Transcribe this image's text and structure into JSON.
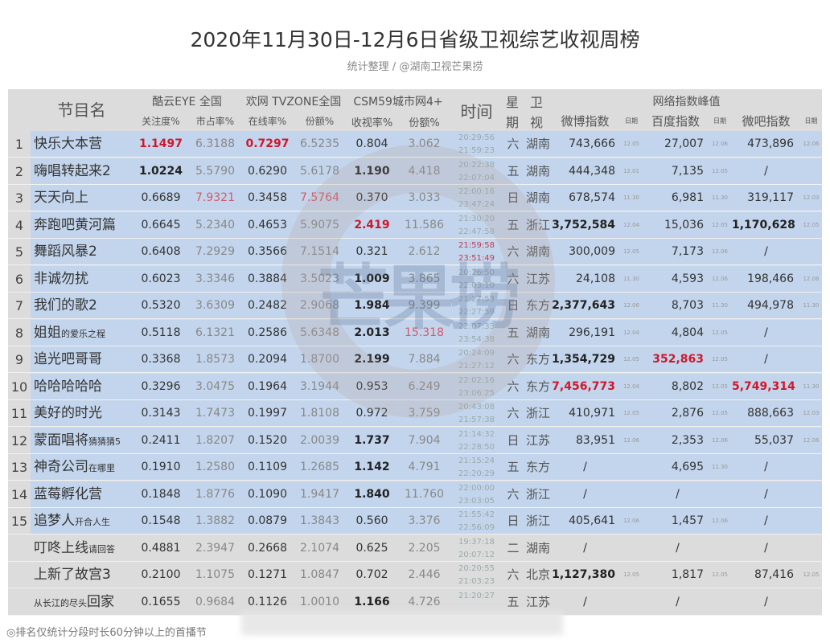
{
  "title": "2020年11月30日-12月6日省级卫视综艺收视周榜",
  "subtitle": "统计整理 / @湖南卫视芒果捞",
  "footer": "◎排名仅统计分段时长60分钟以上的首播节",
  "watermark": "芒果捞",
  "header": {
    "name": "节目名",
    "kuyun": "酷云EYE 全国",
    "huanwang": "欢网 TVZONE全国",
    "csm": "CSM59城市网4+",
    "time": "时间",
    "weekday_top": "星",
    "weekday_bottom": "期",
    "channel_top": "卫",
    "channel_bottom": "视",
    "network": "网络指数峰值",
    "attention": "关注度%",
    "market": "市占率%",
    "online": "在线率%",
    "share1": "份额%",
    "rating": "收视率%",
    "share2": "份额%",
    "weibo": "微博指数",
    "date1": "日期",
    "baidu": "百度指数",
    "date2": "日期",
    "weiba": "微吧指数",
    "date3": "日期"
  },
  "rows": [
    {
      "rank": "1",
      "name": "快乐大本营",
      "sub": "",
      "v": [
        "1.1497",
        "6.3188",
        "0.7297",
        "6.5235",
        "0.804",
        "3.062"
      ],
      "t1": "20:29:56",
      "t2": "21:59:23",
      "wk": "六",
      "ch": "湖南",
      "weibo": "743,666",
      "d1": "12.05",
      "baidu": "27,007",
      "d2": "12.06",
      "weiba": "473,896",
      "d3": "12.06",
      "blue": true,
      "bold": [],
      "red": [
        "v0",
        "v2"
      ]
    },
    {
      "rank": "2",
      "name": "嗨唱转起来2",
      "sub": "",
      "v": [
        "1.0224",
        "5.5790",
        "0.6290",
        "5.6178",
        "1.190",
        "4.418"
      ],
      "t1": "20:22:38",
      "t2": "22:07:04",
      "wk": "五",
      "ch": "湖南",
      "weibo": "444,348",
      "d1": "12.01",
      "baidu": "7,135",
      "d2": "12.05",
      "weiba": "/",
      "d3": "",
      "blue": true,
      "bold": [
        "v0",
        "v4"
      ],
      "red": []
    },
    {
      "rank": "3",
      "name": "天天向上",
      "sub": "",
      "v": [
        "0.6689",
        "7.9321",
        "0.3458",
        "7.5764",
        "0.370",
        "3.033"
      ],
      "t1": "22:00:16",
      "t2": "23:47:24",
      "wk": "日",
      "ch": "湖南",
      "weibo": "678,574",
      "d1": "11.30",
      "baidu": "6,981",
      "d2": "11.30",
      "weiba": "319,117",
      "d3": "12.03",
      "blue": true,
      "bold": [],
      "red": [],
      "redlight": [
        "v1",
        "v3"
      ]
    },
    {
      "rank": "4",
      "name": "奔跑吧黄河篇",
      "sub": "",
      "v": [
        "0.6645",
        "5.2340",
        "0.4653",
        "5.9075",
        "2.419",
        "11.586"
      ],
      "t1": "21:30:20",
      "t2": "22:47:58",
      "wk": "五",
      "ch": "浙江",
      "weibo": "3,752,584",
      "d1": "12.04",
      "baidu": "15,036",
      "d2": "12.05",
      "weiba": "1,170,628",
      "d3": "12.05",
      "blue": true,
      "bold": [
        "weibo",
        "weiba"
      ],
      "red": [
        "v4"
      ]
    },
    {
      "rank": "5",
      "name": "舞蹈风暴2",
      "sub": "",
      "v": [
        "0.6408",
        "7.2929",
        "0.3566",
        "7.1514",
        "0.321",
        "2.612"
      ],
      "t1": "21:59:58",
      "t2": "23:51:49",
      "wk": "六",
      "ch": "湖南",
      "weibo": "300,009",
      "d1": "12.05",
      "baidu": "7,173",
      "d2": "12.06",
      "weiba": "/",
      "d3": "",
      "blue": true,
      "bold": [],
      "red": [],
      "timered": true
    },
    {
      "rank": "6",
      "name": "非诚勿扰",
      "sub": "",
      "v": [
        "0.6023",
        "3.3346",
        "0.3884",
        "3.5023",
        "1.009",
        "3.865"
      ],
      "t1": "20:26:50",
      "t2": "22:03:10",
      "wk": "六",
      "ch": "江苏",
      "weibo": "24,108",
      "d1": "11.30",
      "baidu": "4,593",
      "d2": "12.06",
      "weiba": "198,466",
      "d3": "12.06",
      "blue": true,
      "bold": [
        "v4"
      ],
      "red": []
    },
    {
      "rank": "7",
      "name": "我们的歌2",
      "sub": "",
      "v": [
        "0.5320",
        "3.6309",
        "0.2482",
        "2.9068",
        "1.984",
        "9.399"
      ],
      "t1": "21:27:53",
      "t2": "22:27:59",
      "wk": "日",
      "ch": "东方",
      "weibo": "2,377,643",
      "d1": "12.06",
      "baidu": "8,703",
      "d2": "11.30",
      "weiba": "494,978",
      "d3": "11.30",
      "blue": true,
      "bold": [
        "v4",
        "weibo"
      ],
      "red": []
    },
    {
      "rank": "8",
      "name": "姐姐",
      "sub": "的爱乐之程",
      "v": [
        "0.5118",
        "6.1321",
        "0.2586",
        "5.6348",
        "2.013",
        "15.318"
      ],
      "t1": "22:07:33",
      "t2": "23:54:38",
      "wk": "五",
      "ch": "湖南",
      "weibo": "296,191",
      "d1": "12.04",
      "baidu": "4,804",
      "d2": "12.05",
      "weiba": "/",
      "d3": "",
      "blue": true,
      "bold": [
        "v4"
      ],
      "red": [],
      "redlight": [
        "v5"
      ]
    },
    {
      "rank": "9",
      "name": "追光吧哥哥",
      "sub": "",
      "v": [
        "0.3368",
        "1.8573",
        "0.2094",
        "1.8700",
        "2.199",
        "7.884"
      ],
      "t1": "20:24:09",
      "t2": "21:27:12",
      "wk": "六",
      "ch": "东方",
      "weibo": "1,354,729",
      "d1": "12.05",
      "baidu": "352,863",
      "d2": "12.05",
      "weiba": "/",
      "d3": "",
      "blue": true,
      "bold": [
        "v4",
        "weibo"
      ],
      "red": [
        "baidu"
      ]
    },
    {
      "rank": "10",
      "name": "哈哈哈哈哈",
      "sub": "",
      "v": [
        "0.3296",
        "3.0475",
        "0.1964",
        "3.1944",
        "0.953",
        "6.249"
      ],
      "t1": "22:02:16",
      "t2": "23:06:25",
      "wk": "六",
      "ch": "东方",
      "weibo": "7,456,773",
      "d1": "12.04",
      "baidu": "8,802",
      "d2": "12.05",
      "weiba": "5,749,314",
      "d3": "11.30",
      "blue": true,
      "bold": [],
      "red": [
        "weibo",
        "weiba"
      ]
    },
    {
      "rank": "11",
      "name": "美好的时光",
      "sub": "",
      "v": [
        "0.3143",
        "1.7473",
        "0.1997",
        "1.8108",
        "0.972",
        "3.759"
      ],
      "t1": "20:43:08",
      "t2": "21:57:38",
      "wk": "六",
      "ch": "浙江",
      "weibo": "410,971",
      "d1": "12.05",
      "baidu": "2,876",
      "d2": "12.05",
      "weiba": "888,663",
      "d3": "12.03",
      "blue": true,
      "bold": [],
      "red": []
    },
    {
      "rank": "12",
      "name": "蒙面唱将",
      "sub": "猜猜猜5",
      "v": [
        "0.2411",
        "1.8207",
        "0.1520",
        "2.0039",
        "1.737",
        "7.904"
      ],
      "t1": "21:14:32",
      "t2": "22:28:50",
      "wk": "日",
      "ch": "江苏",
      "weibo": "83,951",
      "d1": "12.06",
      "baidu": "2,353",
      "d2": "12.06",
      "weiba": "55,037",
      "d3": "12.06",
      "blue": true,
      "bold": [
        "v4"
      ],
      "red": []
    },
    {
      "rank": "13",
      "name": "神奇公司",
      "sub": "在哪里",
      "v": [
        "0.1910",
        "1.2580",
        "0.1109",
        "1.2685",
        "1.142",
        "4.791"
      ],
      "t1": "21:15:24",
      "t2": "22:20:29",
      "wk": "五",
      "ch": "东方",
      "weibo": "/",
      "d1": "",
      "baidu": "4,695",
      "d2": "11.30",
      "weiba": "/",
      "d3": "",
      "blue": true,
      "bold": [
        "v4"
      ],
      "red": []
    },
    {
      "rank": "14",
      "name": "蓝莓孵化营",
      "sub": "",
      "v": [
        "0.1848",
        "1.8776",
        "0.1090",
        "1.9417",
        "1.840",
        "11.760"
      ],
      "t1": "22:00:00",
      "t2": "23:03:05",
      "wk": "六",
      "ch": "浙江",
      "weibo": "/",
      "d1": "",
      "baidu": "/",
      "d2": "",
      "weiba": "/",
      "d3": "",
      "blue": true,
      "bold": [
        "v4"
      ],
      "red": []
    },
    {
      "rank": "15",
      "name": "追梦人",
      "sub": "开合人生",
      "v": [
        "0.1548",
        "1.3882",
        "0.0879",
        "1.3843",
        "0.560",
        "3.376"
      ],
      "t1": "21:55:42",
      "t2": "22:56:09",
      "wk": "日",
      "ch": "浙江",
      "weibo": "405,641",
      "d1": "12.06",
      "baidu": "1,457",
      "d2": "12.06",
      "weiba": "/",
      "d3": "",
      "blue": true,
      "bold": [],
      "red": []
    },
    {
      "rank": "",
      "name": "叮咚上线",
      "sub": "请回答",
      "v": [
        "0.4881",
        "2.3947",
        "0.2668",
        "2.1074",
        "0.625",
        "2.205"
      ],
      "t1": "19:37:18",
      "t2": "20:07:12",
      "wk": "二",
      "ch": "湖南",
      "weibo": "/",
      "d1": "",
      "baidu": "/",
      "d2": "",
      "weiba": "/",
      "d3": "",
      "blue": false,
      "bold": [],
      "red": []
    },
    {
      "rank": "",
      "name": "上新了故宫3",
      "sub": "",
      "v": [
        "0.2100",
        "1.1075",
        "0.1271",
        "1.0847",
        "0.702",
        "2.446"
      ],
      "t1": "20:20:55",
      "t2": "21:03:23",
      "wk": "六",
      "ch": "北京",
      "weibo": "1,127,380",
      "d1": "12.05",
      "baidu": "1,817",
      "d2": "12.05",
      "weiba": "87,416",
      "d3": "12.05",
      "blue": false,
      "bold": [
        "weibo"
      ],
      "red": []
    },
    {
      "rank": "",
      "name": "回家",
      "pre": "从长江的尽头",
      "sub": "",
      "v": [
        "0.1655",
        "0.9684",
        "0.1126",
        "1.0010",
        "1.166",
        "4.726"
      ],
      "t1": "21:20:27",
      "t2": "",
      "wk": "五",
      "ch": "江苏",
      "weibo": "/",
      "d1": "",
      "baidu": "/",
      "d2": "",
      "weiba": "/",
      "d3": "",
      "blue": false,
      "bold": [
        "v4"
      ],
      "red": []
    }
  ]
}
